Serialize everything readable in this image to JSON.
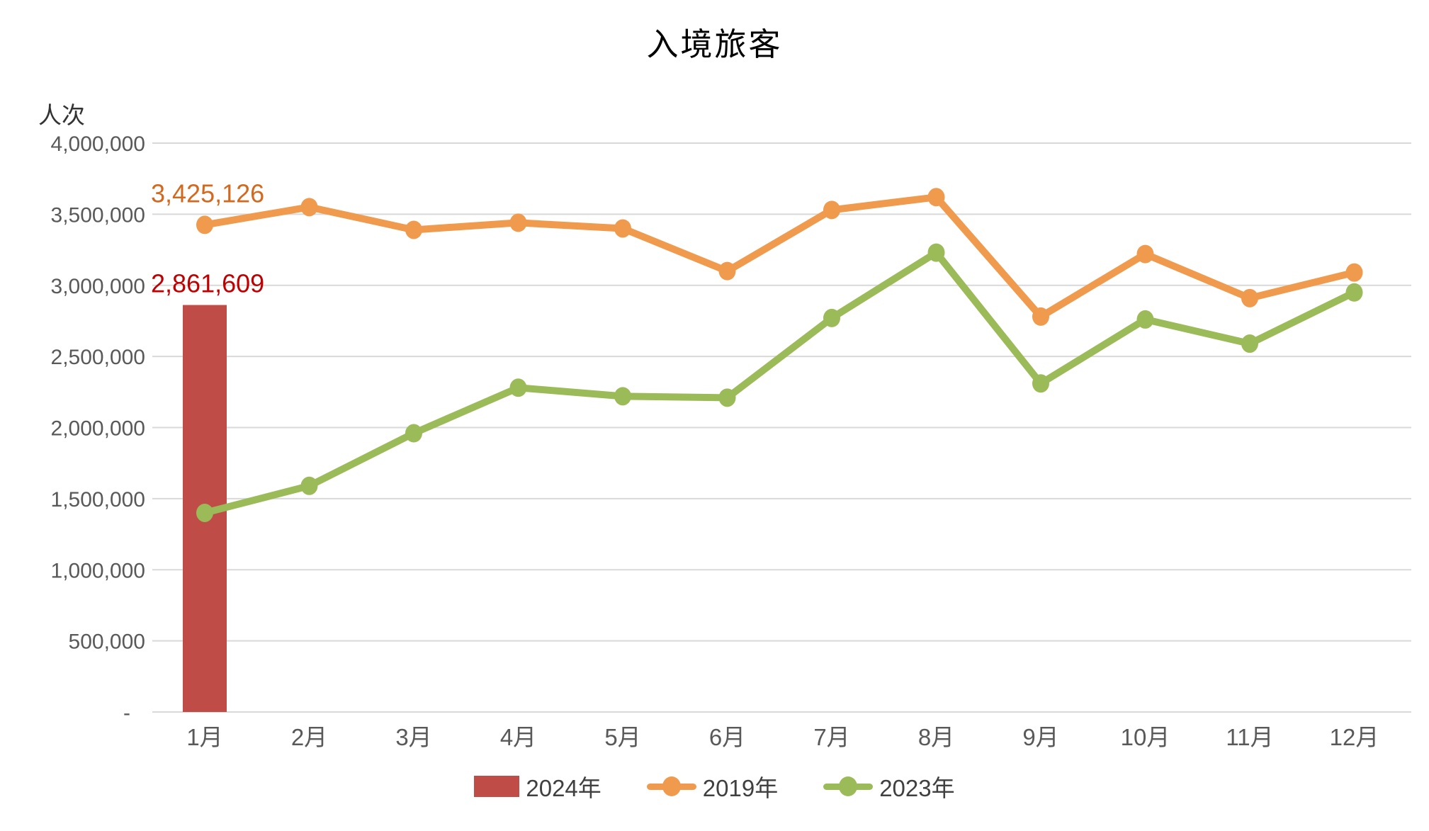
{
  "title": "入境旅客",
  "y_axis": {
    "unit_label": "人次",
    "ticks": [
      "4,000,000",
      "3,500,000",
      "3,000,000",
      "2,500,000",
      "2,000,000",
      "1,500,000",
      "1,000,000",
      "500,000",
      "-"
    ],
    "max": 4000000,
    "step": 500000
  },
  "legend": [
    {
      "label": "2024年",
      "type": "bar",
      "color": "#BF4C47"
    },
    {
      "label": "2019年",
      "type": "line",
      "color": "#F09A4E"
    },
    {
      "label": "2023年",
      "type": "line",
      "color": "#9BBB59"
    }
  ],
  "colors": {
    "gridline": "#D9D9D9",
    "axis_text": "#595959",
    "title_text": "#000000",
    "legend_text": "#404040"
  },
  "chart_data": {
    "type": "combo-bar-line",
    "title": "入境旅客",
    "xlabel": "",
    "ylabel": "人次",
    "ylim": [
      0,
      4000000
    ],
    "grid": true,
    "legend_position": "bottom",
    "categories": [
      "1月",
      "2月",
      "3月",
      "4月",
      "5月",
      "6月",
      "7月",
      "8月",
      "9月",
      "10月",
      "11月",
      "12月"
    ],
    "series": [
      {
        "name": "2024年",
        "type": "bar",
        "color": "#BF4C47",
        "values": [
          2861609,
          null,
          null,
          null,
          null,
          null,
          null,
          null,
          null,
          null,
          null,
          null
        ],
        "data_label": {
          "index": 0,
          "text": "2,861,609",
          "color": "#C00000"
        }
      },
      {
        "name": "2019年",
        "type": "line",
        "color": "#F09A4E",
        "values": [
          3425126,
          3550000,
          3390000,
          3440000,
          3400000,
          3100000,
          3530000,
          3620000,
          2780000,
          3220000,
          2910000,
          3090000
        ],
        "data_label": {
          "index": 0,
          "text": "3,425,126",
          "color": "#D2691E"
        }
      },
      {
        "name": "2023年",
        "type": "line",
        "color": "#9BBB59",
        "values": [
          1400000,
          1590000,
          1960000,
          2280000,
          2220000,
          2210000,
          2770000,
          3230000,
          2310000,
          2760000,
          2590000,
          2950000
        ]
      }
    ]
  }
}
